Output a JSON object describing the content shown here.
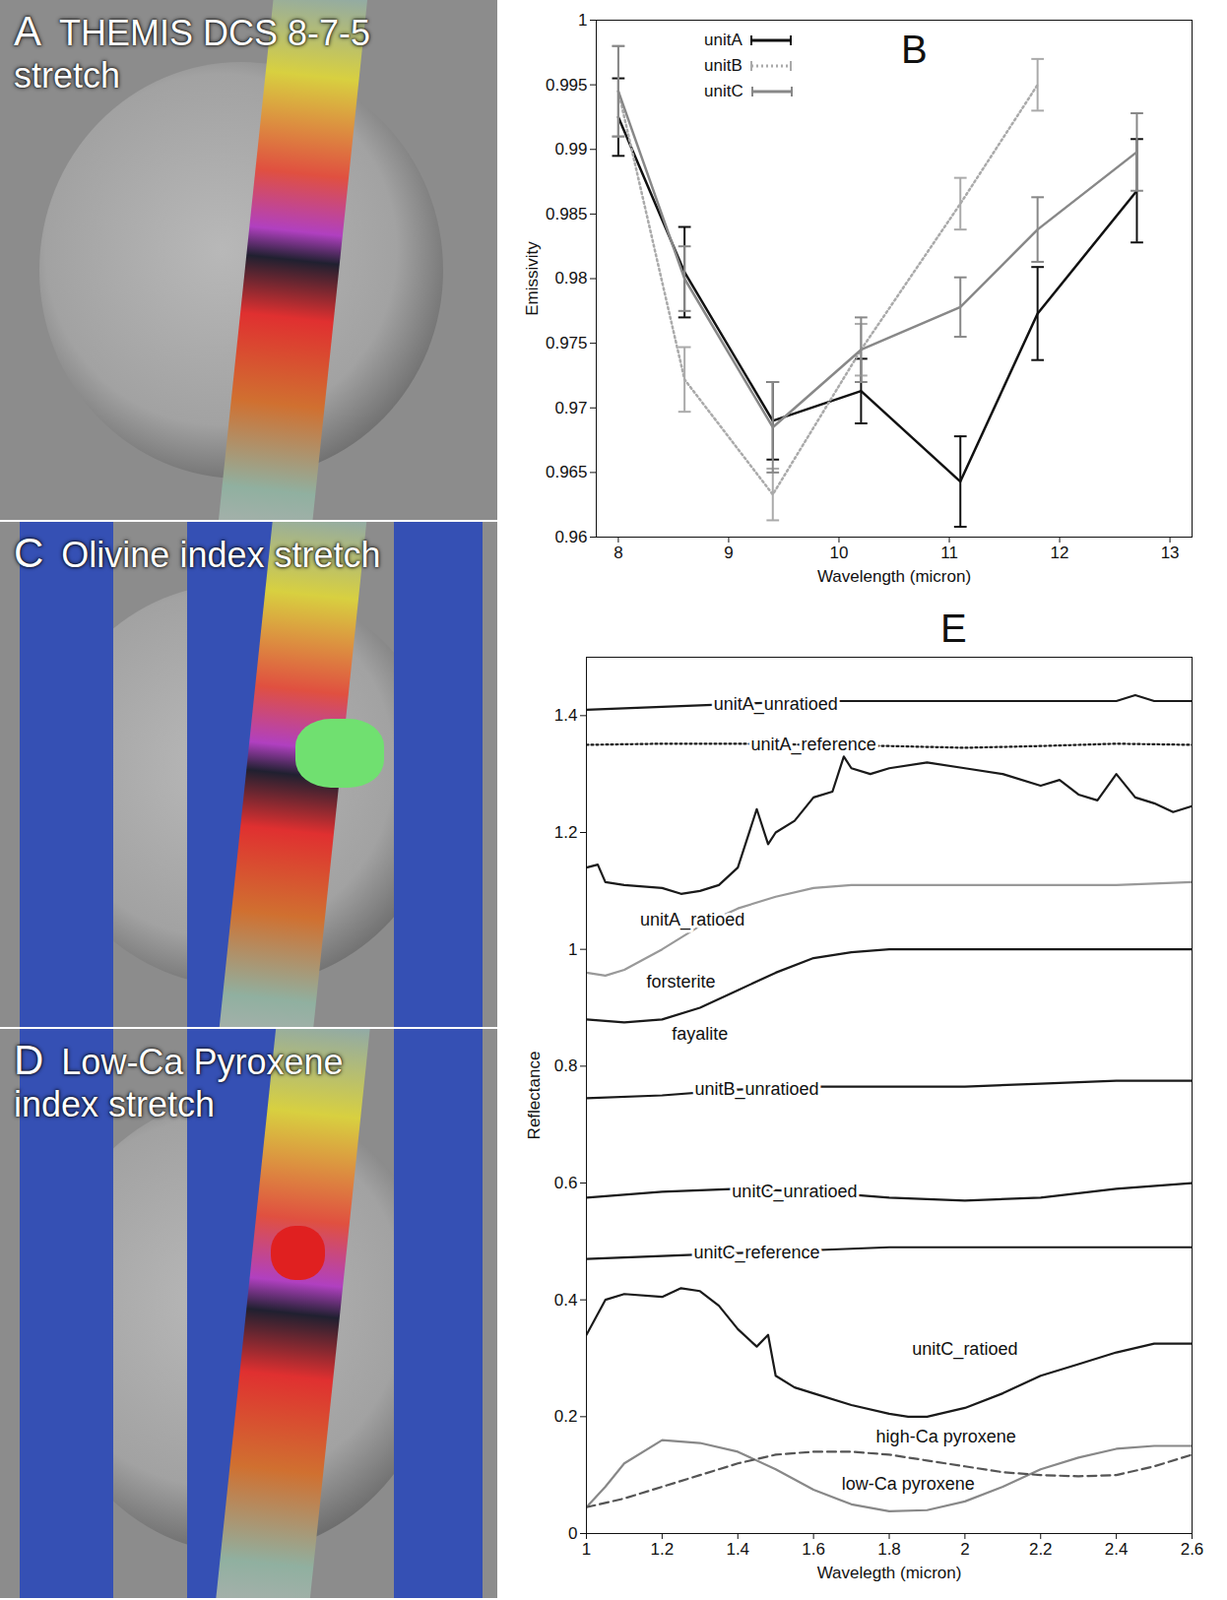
{
  "panels": [
    {
      "letter": "A",
      "title": "THEMIS DCS 8-7-5 stretch"
    },
    {
      "letter": "C",
      "title": "Olivine index stretch"
    },
    {
      "letter": "D",
      "title": "Low-Ca Pyroxene index stretch"
    }
  ],
  "chart_data": [
    {
      "type": "line",
      "letter": "B",
      "x_label": "Wavelength (micron)",
      "y_label": "Emissivity",
      "xlim": [
        7.8,
        13.2
      ],
      "xticks": [
        8,
        9,
        10,
        11,
        12,
        13
      ],
      "ylim": [
        0.96,
        1
      ],
      "yticks": [
        0.96,
        0.965,
        0.97,
        0.975,
        0.98,
        0.985,
        0.99,
        0.995,
        1
      ],
      "legend": "upper left",
      "series": [
        {
          "name": "unitA",
          "color": "#111111",
          "line_style": "solid",
          "x": [
            8.0,
            8.6,
            9.4,
            10.2,
            11.1,
            11.8,
            12.7
          ],
          "values": [
            0.9925,
            0.9805,
            0.969,
            0.9713,
            0.9643,
            0.9773,
            0.9868
          ],
          "errors": [
            0.003,
            0.0035,
            0.003,
            0.0025,
            0.0035,
            0.0036,
            0.004
          ]
        },
        {
          "name": "unitB",
          "color": "#aaaaaa",
          "line_style": "dotted",
          "x": [
            8.0,
            8.6,
            9.4,
            10.2,
            11.1,
            11.8
          ],
          "values": [
            0.9945,
            0.9722,
            0.9633,
            0.9745,
            0.9858,
            0.995
          ],
          "errors": [
            0.0035,
            0.0025,
            0.002,
            0.002,
            0.002,
            0.002
          ]
        },
        {
          "name": "unitC",
          "color": "#888888",
          "line_style": "solid",
          "x": [
            8.0,
            8.6,
            9.4,
            10.2,
            11.1,
            11.8,
            12.7
          ],
          "values": [
            0.9945,
            0.98,
            0.9685,
            0.9745,
            0.9778,
            0.9838,
            0.9898
          ],
          "errors": [
            0.0035,
            0.0025,
            0.0035,
            0.0025,
            0.0023,
            0.0025,
            0.003
          ]
        }
      ]
    },
    {
      "type": "line",
      "letter": "E",
      "x_label": "Wavelegth (micron)",
      "y_label": "Reflectance",
      "xlim": [
        1,
        2.6
      ],
      "xticks": [
        1,
        1.2,
        1.4,
        1.6,
        1.8,
        2,
        2.2,
        2.4,
        2.6
      ],
      "ylim": [
        0,
        1.5
      ],
      "yticks": [
        0,
        0.2,
        0.4,
        0.6,
        0.8,
        1,
        1.2,
        1.4
      ],
      "series": [
        {
          "name": "unitA_unratioed",
          "color": "#1a1a1a",
          "line_style": "solid",
          "x": [
            1.0,
            1.2,
            1.4,
            1.6,
            1.8,
            2.0,
            2.2,
            2.4,
            2.45,
            2.5,
            2.6
          ],
          "values": [
            1.41,
            1.415,
            1.42,
            1.425,
            1.425,
            1.425,
            1.425,
            1.425,
            1.435,
            1.425,
            1.425
          ]
        },
        {
          "name": "unitA_reference",
          "color": "#1a1a1a",
          "line_style": "dotted",
          "x": [
            1.0,
            1.2,
            1.4,
            1.6,
            1.8,
            2.0,
            2.2,
            2.4,
            2.6
          ],
          "values": [
            1.35,
            1.352,
            1.352,
            1.35,
            1.348,
            1.345,
            1.348,
            1.352,
            1.35
          ]
        },
        {
          "name": "unitA_ratioed",
          "color": "#1a1a1a",
          "line_style": "solid",
          "x": [
            1.0,
            1.03,
            1.05,
            1.1,
            1.2,
            1.25,
            1.3,
            1.35,
            1.4,
            1.45,
            1.48,
            1.5,
            1.55,
            1.6,
            1.65,
            1.68,
            1.7,
            1.75,
            1.8,
            1.9,
            2.0,
            2.1,
            2.2,
            2.25,
            2.3,
            2.35,
            2.4,
            2.45,
            2.5,
            2.55,
            2.6
          ],
          "values": [
            1.14,
            1.145,
            1.115,
            1.11,
            1.105,
            1.095,
            1.1,
            1.11,
            1.14,
            1.24,
            1.18,
            1.2,
            1.22,
            1.26,
            1.27,
            1.33,
            1.31,
            1.3,
            1.31,
            1.32,
            1.31,
            1.3,
            1.28,
            1.29,
            1.265,
            1.255,
            1.3,
            1.26,
            1.25,
            1.235,
            1.245
          ]
        },
        {
          "name": "forsterite",
          "color": "#999999",
          "line_style": "solid",
          "x": [
            1.0,
            1.05,
            1.1,
            1.2,
            1.3,
            1.4,
            1.5,
            1.6,
            1.7,
            1.8,
            2.0,
            2.2,
            2.4,
            2.6
          ],
          "values": [
            0.96,
            0.955,
            0.965,
            1.0,
            1.04,
            1.07,
            1.09,
            1.105,
            1.11,
            1.11,
            1.11,
            1.11,
            1.11,
            1.115
          ]
        },
        {
          "name": "fayalite",
          "color": "#1a1a1a",
          "line_style": "solid",
          "x": [
            1.0,
            1.1,
            1.2,
            1.3,
            1.4,
            1.5,
            1.6,
            1.7,
            1.8,
            2.0,
            2.2,
            2.4,
            2.6
          ],
          "values": [
            0.88,
            0.875,
            0.88,
            0.9,
            0.93,
            0.96,
            0.985,
            0.995,
            1.0,
            1.0,
            1.0,
            1.0,
            1.0
          ]
        },
        {
          "name": "unitB_unratioed",
          "color": "#1a1a1a",
          "line_style": "solid",
          "x": [
            1.0,
            1.2,
            1.4,
            1.6,
            1.8,
            2.0,
            2.2,
            2.4,
            2.6
          ],
          "values": [
            0.745,
            0.75,
            0.76,
            0.765,
            0.765,
            0.765,
            0.77,
            0.775,
            0.775
          ]
        },
        {
          "name": "unitC_unratioed",
          "color": "#1a1a1a",
          "line_style": "solid",
          "x": [
            1.0,
            1.2,
            1.4,
            1.6,
            1.8,
            2.0,
            2.2,
            2.4,
            2.6
          ],
          "values": [
            0.575,
            0.585,
            0.59,
            0.585,
            0.575,
            0.57,
            0.575,
            0.59,
            0.6
          ]
        },
        {
          "name": "unitC_reference",
          "color": "#1a1a1a",
          "line_style": "solid",
          "x": [
            1.0,
            1.2,
            1.4,
            1.6,
            1.8,
            2.0,
            2.2,
            2.4,
            2.6
          ],
          "values": [
            0.47,
            0.475,
            0.48,
            0.485,
            0.49,
            0.49,
            0.49,
            0.49,
            0.49
          ]
        },
        {
          "name": "unitC_ratioed",
          "color": "#1a1a1a",
          "line_style": "solid",
          "x": [
            1.0,
            1.05,
            1.1,
            1.2,
            1.25,
            1.3,
            1.35,
            1.4,
            1.45,
            1.48,
            1.5,
            1.55,
            1.6,
            1.7,
            1.8,
            1.85,
            1.9,
            2.0,
            2.1,
            2.2,
            2.3,
            2.4,
            2.5,
            2.6
          ],
          "values": [
            0.34,
            0.4,
            0.41,
            0.405,
            0.42,
            0.415,
            0.39,
            0.35,
            0.32,
            0.34,
            0.27,
            0.25,
            0.24,
            0.22,
            0.205,
            0.2,
            0.2,
            0.215,
            0.24,
            0.27,
            0.29,
            0.31,
            0.325,
            0.325
          ]
        },
        {
          "name": "low-Ca pyroxene",
          "color": "#888888",
          "line_style": "solid",
          "x": [
            1.0,
            1.05,
            1.1,
            1.2,
            1.3,
            1.4,
            1.5,
            1.6,
            1.7,
            1.8,
            1.9,
            2.0,
            2.1,
            2.2,
            2.3,
            2.4,
            2.5,
            2.6
          ],
          "values": [
            0.045,
            0.08,
            0.12,
            0.16,
            0.155,
            0.14,
            0.11,
            0.075,
            0.05,
            0.038,
            0.04,
            0.055,
            0.08,
            0.11,
            0.13,
            0.145,
            0.15,
            0.15
          ]
        },
        {
          "name": "high-Ca pyroxene",
          "color": "#555555",
          "line_style": "dashed",
          "x": [
            1.0,
            1.1,
            1.2,
            1.3,
            1.4,
            1.5,
            1.6,
            1.7,
            1.8,
            1.9,
            2.0,
            2.1,
            2.2,
            2.3,
            2.4,
            2.5,
            2.6
          ],
          "values": [
            0.045,
            0.06,
            0.08,
            0.1,
            0.12,
            0.135,
            0.14,
            0.14,
            0.135,
            0.125,
            0.115,
            0.105,
            0.1,
            0.098,
            0.1,
            0.115,
            0.135
          ]
        }
      ]
    }
  ]
}
